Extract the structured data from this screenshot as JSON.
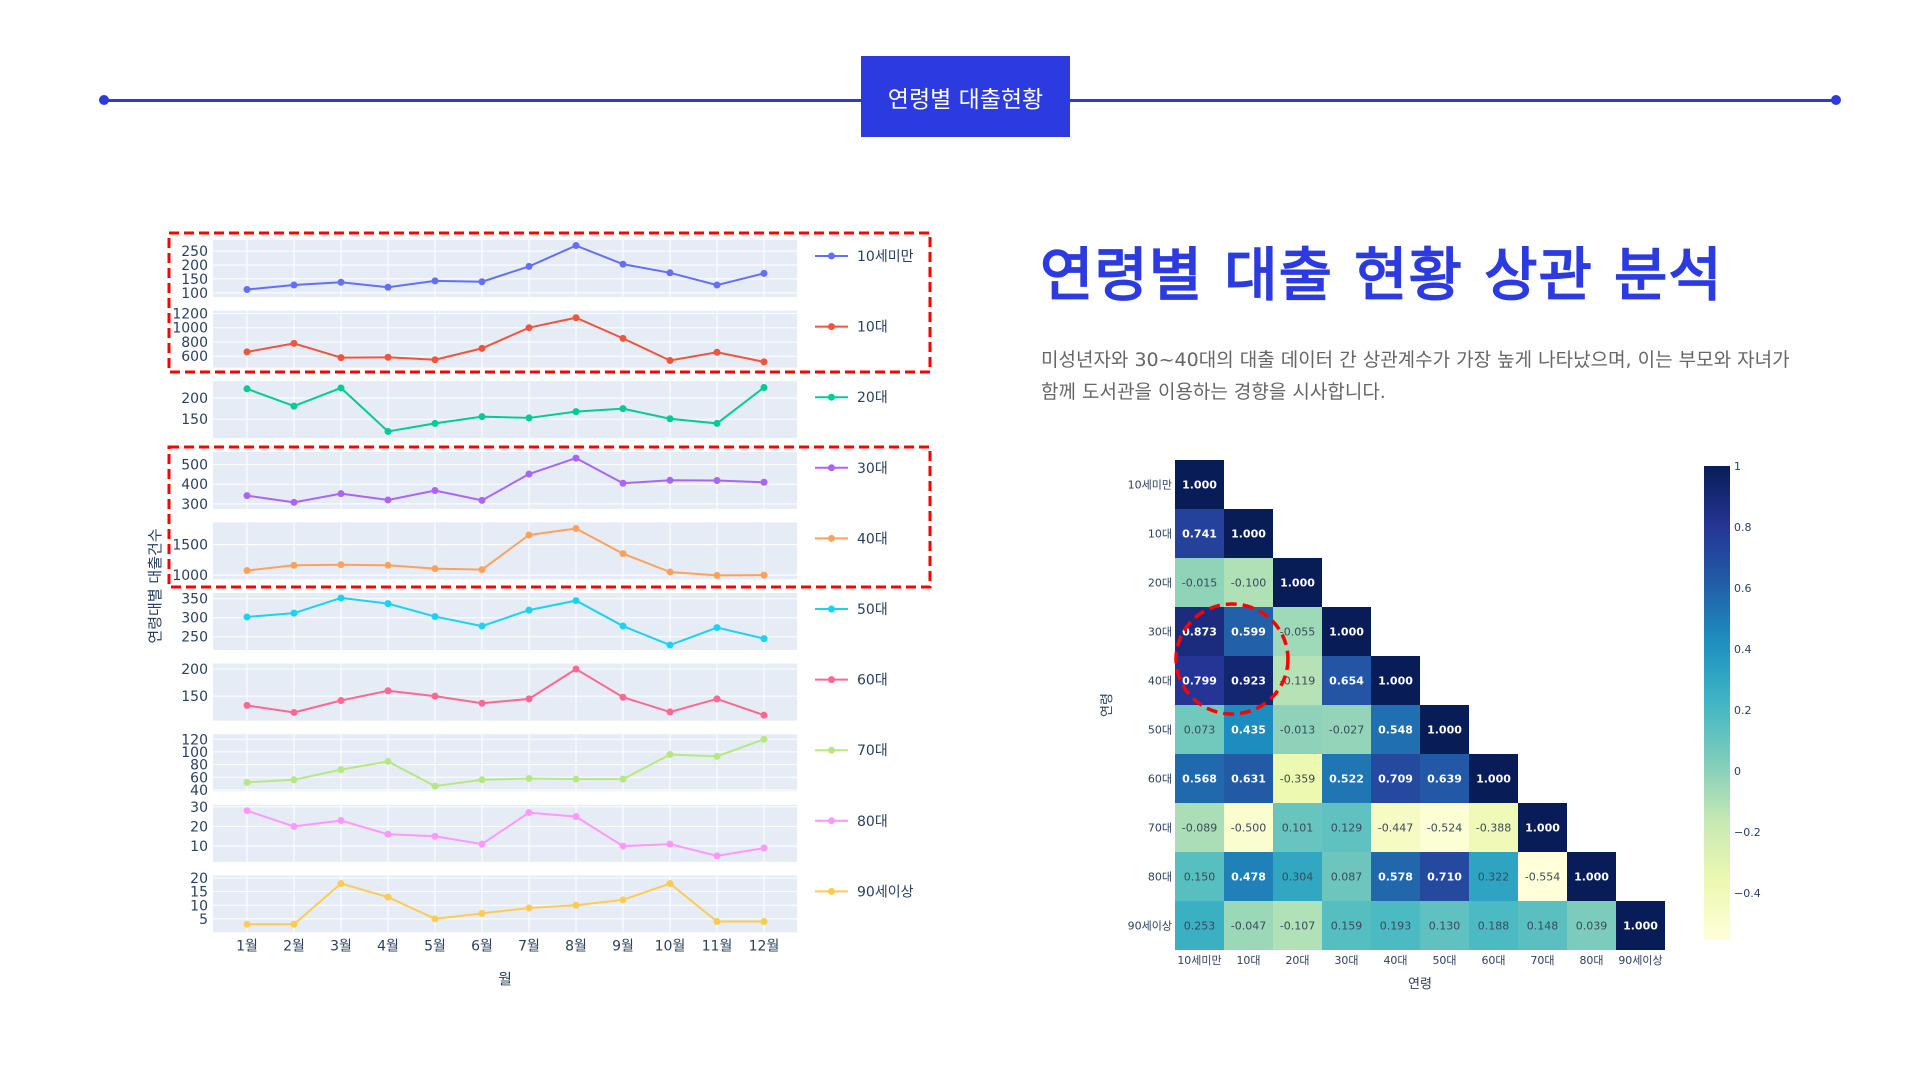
{
  "header": {
    "badge": "연령별 대출현황",
    "accent": "#2b3be0"
  },
  "main": {
    "title": "연령별 대출 현황 상관 분석",
    "description_line1": "미성년자와 30~40대의 대출 데이터 간 상관계수가 가장 높게 나타났으며, 이는 부모와 자녀가",
    "description_line2": "함께 도서관을 이용하는 경향을 시사합니다."
  },
  "chart_data": [
    {
      "type": "line",
      "title": "",
      "xlabel": "월",
      "ylabel": "연령대별 대출건수",
      "x": [
        "1월",
        "2월",
        "3월",
        "4월",
        "5월",
        "6월",
        "7월",
        "8월",
        "9월",
        "10월",
        "11월",
        "12월"
      ],
      "series": [
        {
          "name": "10세미만",
          "color": "#636efa",
          "values": [
            112,
            128,
            138,
            120,
            143,
            140,
            195,
            270,
            203,
            172,
            128,
            170
          ],
          "ylim": [
            85,
            290
          ],
          "ticks": [
            100,
            150,
            200,
            250
          ]
        },
        {
          "name": "10대",
          "color": "#ef553b",
          "values": [
            660,
            780,
            580,
            585,
            550,
            710,
            1000,
            1140,
            850,
            540,
            655,
            520
          ],
          "ylim": [
            440,
            1240
          ],
          "ticks": [
            600,
            800,
            1000,
            1200
          ]
        },
        {
          "name": "20대",
          "color": "#00cc96",
          "values": [
            222,
            181,
            224,
            121,
            140,
            156,
            153,
            168,
            175,
            151,
            140,
            225
          ],
          "ylim": [
            105,
            240
          ],
          "ticks": [
            150,
            200
          ]
        },
        {
          "name": "30대",
          "color": "#ab63fa",
          "values": [
            342,
            308,
            352,
            320,
            368,
            318,
            452,
            533,
            405,
            420,
            419,
            410
          ],
          "ylim": [
            275,
            565
          ],
          "ticks": [
            300,
            400,
            500
          ]
        },
        {
          "name": "40대",
          "color": "#ffa15a",
          "values": [
            1075,
            1160,
            1170,
            1160,
            1105,
            1090,
            1655,
            1760,
            1350,
            1050,
            995,
            1000
          ],
          "ylim": [
            930,
            1860
          ],
          "ticks": [
            1000,
            1500
          ]
        },
        {
          "name": "50대",
          "color": "#19d3f3",
          "values": [
            302,
            312,
            352,
            337,
            303,
            278,
            320,
            345,
            278,
            228,
            274,
            245
          ],
          "ylim": [
            215,
            365
          ],
          "ticks": [
            250,
            300,
            350
          ]
        },
        {
          "name": "60대",
          "color": "#ff6692",
          "values": [
            133,
            120,
            142,
            160,
            150,
            137,
            145,
            200,
            148,
            121,
            145,
            115
          ],
          "ylim": [
            105,
            210
          ],
          "ticks": [
            150,
            200
          ]
        },
        {
          "name": "70대",
          "color": "#b6e880",
          "values": [
            52,
            56,
            72,
            85,
            46,
            56,
            58,
            57,
            57,
            96,
            93,
            120
          ],
          "ylim": [
            38,
            128
          ],
          "ticks": [
            40,
            60,
            80,
            100,
            120
          ]
        },
        {
          "name": "80대",
          "color": "#ff97ff",
          "values": [
            28,
            20,
            23,
            16,
            15,
            11,
            27,
            25,
            10,
            11,
            5,
            9
          ],
          "ylim": [
            2,
            31
          ],
          "ticks": [
            10,
            20,
            30
          ]
        },
        {
          "name": "90세이상",
          "color": "#fecb52",
          "values": [
            3,
            3,
            18,
            13,
            5,
            7,
            9,
            10,
            12,
            18,
            4,
            4
          ],
          "ylim": [
            0,
            21
          ],
          "ticks": [
            5,
            10,
            15,
            20
          ]
        }
      ],
      "highlights": [
        [
          "10세미만",
          "10대"
        ],
        [
          "30대",
          "40대"
        ]
      ]
    },
    {
      "type": "heatmap",
      "title": "",
      "xlabel": "연령",
      "ylabel": "연령",
      "labels": [
        "10세미만",
        "10대",
        "20대",
        "30대",
        "40대",
        "50대",
        "60대",
        "70대",
        "80대",
        "90세이상"
      ],
      "matrix": [
        [
          1.0
        ],
        [
          0.741,
          1.0
        ],
        [
          -0.015,
          -0.1,
          1.0
        ],
        [
          0.873,
          0.599,
          -0.055,
          1.0
        ],
        [
          0.799,
          0.923,
          -0.119,
          0.654,
          1.0
        ],
        [
          0.073,
          0.435,
          -0.013,
          -0.027,
          0.548,
          1.0
        ],
        [
          0.568,
          0.631,
          -0.359,
          0.522,
          0.709,
          0.639,
          1.0
        ],
        [
          -0.089,
          -0.5,
          0.101,
          0.129,
          -0.447,
          -0.524,
          -0.388,
          1.0
        ],
        [
          0.15,
          0.478,
          0.304,
          0.087,
          0.578,
          0.71,
          0.322,
          -0.554,
          1.0
        ],
        [
          0.253,
          -0.047,
          -0.107,
          0.159,
          0.193,
          0.13,
          0.188,
          0.148,
          0.039,
          1.0
        ]
      ],
      "colorbar": {
        "range": [
          -0.554,
          1
        ],
        "ticks": [
          "1",
          "0.8",
          "0.6",
          "0.4",
          "0.2",
          "0",
          "−0.2",
          "−0.4"
        ],
        "tick_values": [
          1,
          0.8,
          0.6,
          0.4,
          0.2,
          0,
          -0.2,
          -0.4
        ]
      },
      "colorscale": [
        "#ffffd9",
        "#edf8b1",
        "#c7e9b4",
        "#7fcdbb",
        "#41b6c4",
        "#1d91c0",
        "#225ea8",
        "#253494",
        "#081d58"
      ],
      "highlight": [
        "30대/40대",
        "10세미만/10대"
      ]
    }
  ]
}
